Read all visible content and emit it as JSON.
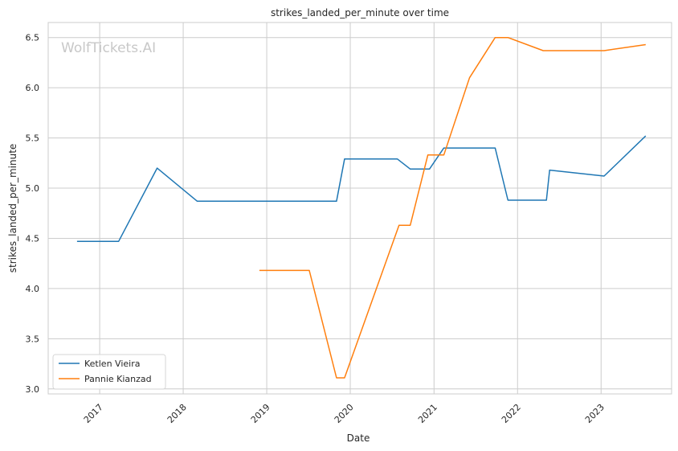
{
  "chart_data": {
    "type": "line",
    "title": "strikes_landed_per_minute over time",
    "xlabel": "Date",
    "ylabel": "strikes_landed_per_minute",
    "watermark": "WolfTickets.AI",
    "x_ticks": [
      "2017",
      "2018",
      "2019",
      "2020",
      "2021",
      "2022",
      "2023"
    ],
    "y_ticks": [
      "3.0",
      "3.5",
      "4.0",
      "4.5",
      "5.0",
      "5.5",
      "6.0",
      "6.5"
    ],
    "ylim": [
      2.95,
      6.65
    ],
    "xlim": [
      "2016-05-21",
      "2023-11-05"
    ],
    "grid": true,
    "legend_position": "lower-left",
    "series": [
      {
        "name": "Ketlen Vieira",
        "color": "#1f77b4",
        "points": [
          [
            "2016-09-24",
            4.47
          ],
          [
            "2017-03-25",
            4.47
          ],
          [
            "2017-09-09",
            5.2
          ],
          [
            "2018-03-03",
            4.87
          ],
          [
            "2018-11-17",
            4.87
          ],
          [
            "2019-11-02",
            4.87
          ],
          [
            "2019-12-07",
            5.29
          ],
          [
            "2020-07-25",
            5.29
          ],
          [
            "2020-09-19",
            5.19
          ],
          [
            "2020-12-12",
            5.19
          ],
          [
            "2021-02-13",
            5.4
          ],
          [
            "2021-09-25",
            5.4
          ],
          [
            "2021-11-20",
            4.88
          ],
          [
            "2022-05-07",
            4.88
          ],
          [
            "2022-05-21",
            5.18
          ],
          [
            "2023-01-14",
            5.12
          ],
          [
            "2023-07-15",
            5.52
          ]
        ]
      },
      {
        "name": "Pannie Kianzad",
        "color": "#ff7f0e",
        "points": [
          [
            "2018-11-30",
            4.18
          ],
          [
            "2019-07-06",
            4.18
          ],
          [
            "2019-11-02",
            3.11
          ],
          [
            "2019-12-07",
            3.11
          ],
          [
            "2020-08-01",
            4.63
          ],
          [
            "2020-09-19",
            4.63
          ],
          [
            "2020-12-05",
            5.33
          ],
          [
            "2021-02-13",
            5.33
          ],
          [
            "2021-06-05",
            6.1
          ],
          [
            "2021-09-25",
            6.5
          ],
          [
            "2021-11-20",
            6.5
          ],
          [
            "2022-04-23",
            6.37
          ],
          [
            "2023-01-14",
            6.37
          ],
          [
            "2023-07-15",
            6.43
          ]
        ]
      }
    ]
  }
}
